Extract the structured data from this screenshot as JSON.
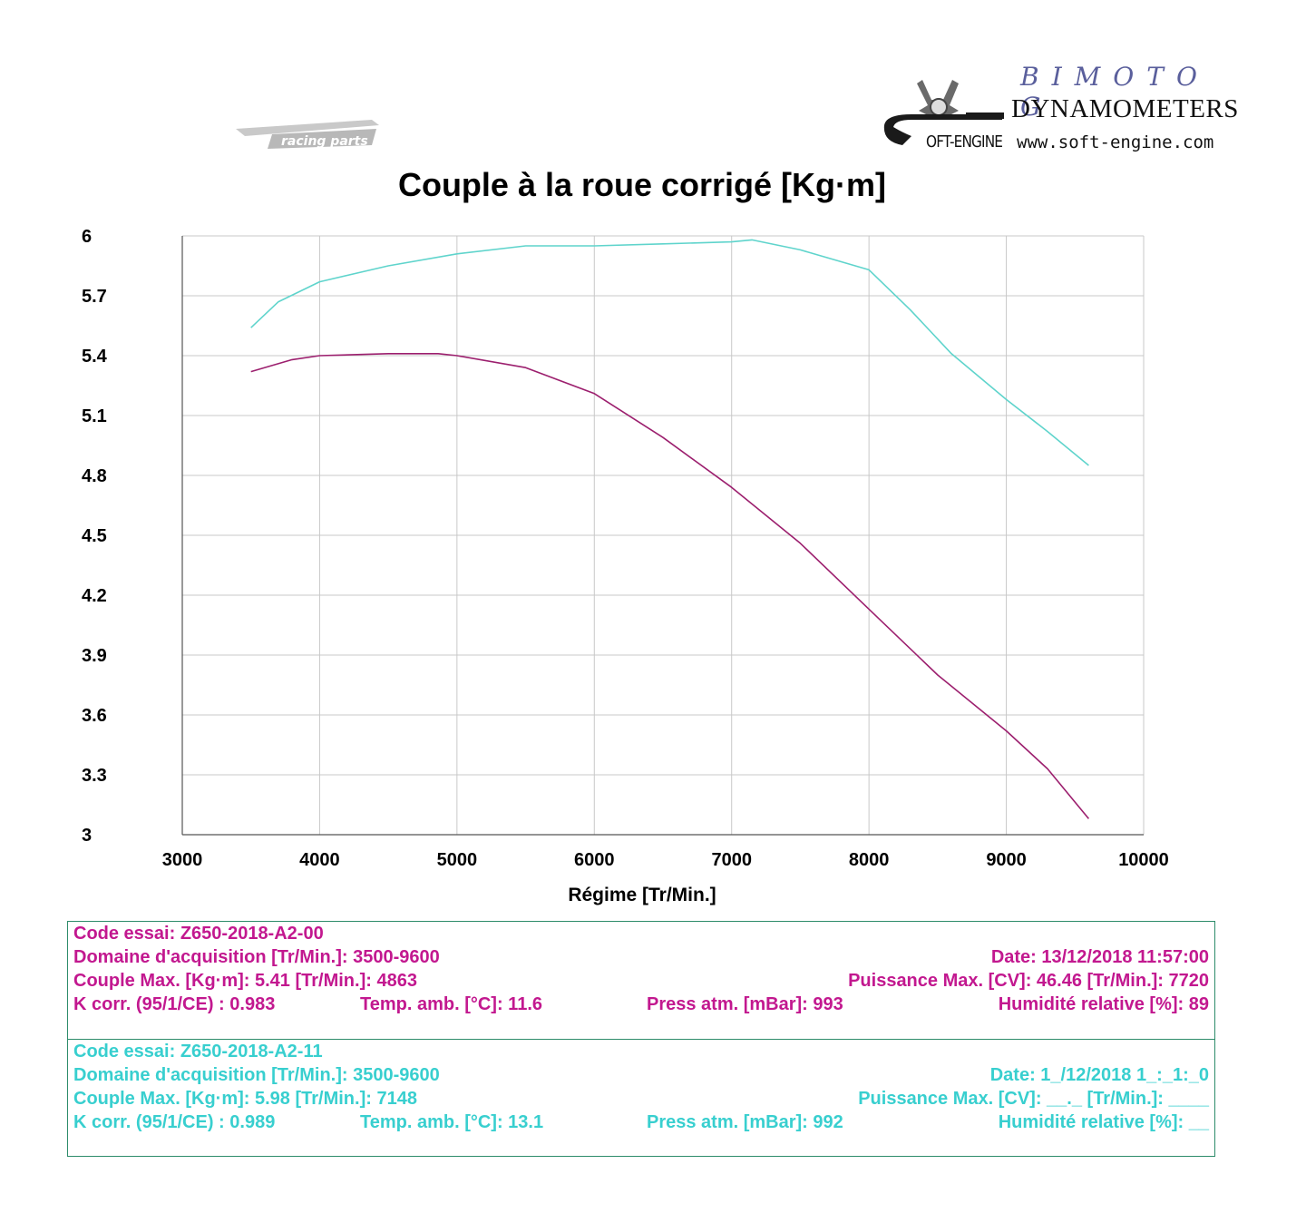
{
  "header": {
    "left_logo_text": "racing parts",
    "brand_script": "BIMOTO G",
    "brand_name": "DYNAMOMETERS",
    "brand_soft": "OFT-ENGINE",
    "brand_url": "www.soft-engine.com"
  },
  "colors": {
    "series_1": "#9c1f6e",
    "series_2": "#5fd4cc",
    "text_1": "#c2188f",
    "text_2": "#38cfcf",
    "grid": "#c8c8c8",
    "box_border": "#2d8b6a"
  },
  "chart_data": {
    "type": "line",
    "title": "Couple à la roue corrigé [Kg·m]",
    "xlabel": "Régime [Tr/Min.]",
    "ylabel": "",
    "xlim": [
      3000,
      10000
    ],
    "ylim": [
      3,
      6
    ],
    "x_ticks": [
      3000,
      4000,
      5000,
      6000,
      7000,
      8000,
      9000,
      10000
    ],
    "y_ticks": [
      3,
      3.3,
      3.6,
      3.9,
      4.2,
      4.5,
      4.8,
      5.1,
      5.4,
      5.7,
      6
    ],
    "y_tick_labels": [
      "3",
      "3.3",
      "3.6",
      "3.9",
      "4.2",
      "4.5",
      "4.8",
      "5.1",
      "5.4",
      "5.7",
      "6"
    ],
    "grid": true,
    "series": [
      {
        "name": "Z650-2018-A2-00",
        "points": [
          [
            3500,
            5.32
          ],
          [
            3800,
            5.38
          ],
          [
            4000,
            5.4
          ],
          [
            4500,
            5.41
          ],
          [
            4863,
            5.41
          ],
          [
            5000,
            5.4
          ],
          [
            5500,
            5.34
          ],
          [
            6000,
            5.21
          ],
          [
            6500,
            4.99
          ],
          [
            7000,
            4.74
          ],
          [
            7500,
            4.46
          ],
          [
            8000,
            4.13
          ],
          [
            8500,
            3.8
          ],
          [
            9000,
            3.52
          ],
          [
            9300,
            3.33
          ],
          [
            9600,
            3.08
          ]
        ]
      },
      {
        "name": "Z650-2018-A2-11",
        "points": [
          [
            3500,
            5.54
          ],
          [
            3700,
            5.67
          ],
          [
            4000,
            5.77
          ],
          [
            4500,
            5.85
          ],
          [
            5000,
            5.91
          ],
          [
            5500,
            5.95
          ],
          [
            6000,
            5.95
          ],
          [
            6500,
            5.96
          ],
          [
            7000,
            5.97
          ],
          [
            7148,
            5.98
          ],
          [
            7500,
            5.93
          ],
          [
            8000,
            5.83
          ],
          [
            8300,
            5.63
          ],
          [
            8600,
            5.41
          ],
          [
            9000,
            5.18
          ],
          [
            9300,
            5.02
          ],
          [
            9600,
            4.85
          ]
        ]
      }
    ]
  },
  "tests": [
    {
      "code": "Code essai: Z650-2018-A2-00",
      "domain": "Domaine d'acquisition [Tr/Min.]: 3500-9600",
      "date": "Date: 13/12/2018   11:57:00",
      "couple": "Couple Max. [Kg·m]: 5.41   [Tr/Min.]: 4863",
      "puissance": "Puissance Max. [CV]: 46.46   [Tr/Min.]: 7720",
      "kcorr": "K corr. (95/1/CE) : 0.983",
      "temp": "Temp. amb. [°C]: 11.6",
      "press": "Press atm. [mBar]: 993",
      "humid": "Humidité relative [%]: 89"
    },
    {
      "code": "Code essai: Z650-2018-A2-11",
      "domain": "Domaine d'acquisition [Tr/Min.]: 3500-9600",
      "date": "Date: 1_/12/2018   1_:_1:_0",
      "couple": "Couple Max. [Kg·m]: 5.98   [Tr/Min.]: 7148",
      "puissance": "Puissance Max. [CV]: __._   [Tr/Min.]: ____",
      "kcorr": "K corr. (95/1/CE) : 0.989",
      "temp": "Temp. amb. [°C]: 13.1",
      "press": "Press atm. [mBar]: 992",
      "humid": "Humidité relative [%]: __"
    }
  ]
}
